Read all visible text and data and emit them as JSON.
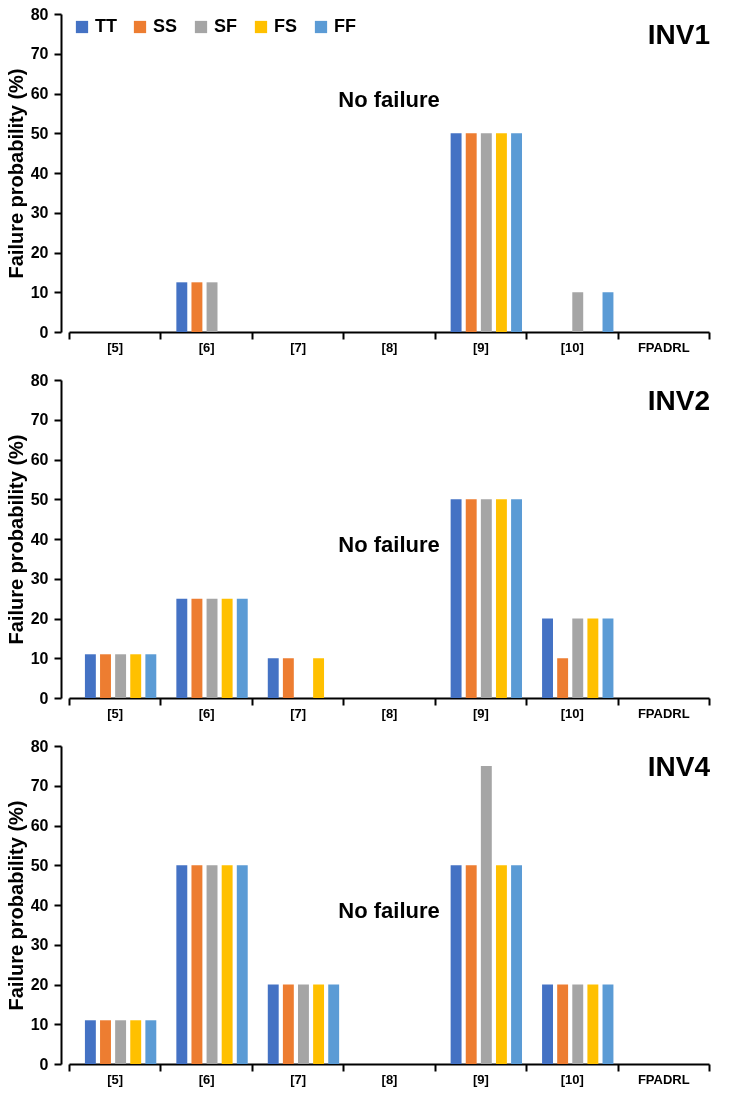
{
  "chart_data": [
    {
      "type": "bar",
      "title": "INV1",
      "ylabel": "Failure probability (%)",
      "categories": [
        "[5]",
        "[6]",
        "[7]",
        "[8]",
        "[9]",
        "[10]",
        "FPADRL"
      ],
      "series": [
        {
          "name": "TT",
          "color": "#4472c4",
          "values": [
            0,
            12.5,
            0,
            0,
            50,
            0,
            0
          ]
        },
        {
          "name": "SS",
          "color": "#ed7d31",
          "values": [
            0,
            12.5,
            0,
            0,
            50,
            0,
            0
          ]
        },
        {
          "name": "SF",
          "color": "#a5a5a5",
          "values": [
            0,
            12.5,
            0,
            0,
            50,
            10,
            0
          ]
        },
        {
          "name": "FS",
          "color": "#ffc000",
          "values": [
            0,
            0,
            0,
            0,
            50,
            0,
            0
          ]
        },
        {
          "name": "FF",
          "color": "#5b9bd5",
          "values": [
            0,
            0,
            0,
            0,
            50,
            10,
            0
          ]
        }
      ],
      "ylim": [
        0,
        80
      ],
      "yticks": [
        0,
        10,
        20,
        30,
        40,
        50,
        60,
        70,
        80
      ],
      "grid": false,
      "legend": "top left",
      "annotations": [
        "No failure"
      ]
    },
    {
      "type": "bar",
      "title": "INV2",
      "ylabel": "Failure probability (%)",
      "categories": [
        "[5]",
        "[6]",
        "[7]",
        "[8]",
        "[9]",
        "[10]",
        "FPADRL"
      ],
      "series": [
        {
          "name": "TT",
          "color": "#4472c4",
          "values": [
            11,
            25,
            10,
            0,
            50,
            20,
            0
          ]
        },
        {
          "name": "SS",
          "color": "#ed7d31",
          "values": [
            11,
            25,
            10,
            0,
            50,
            10,
            0
          ]
        },
        {
          "name": "SF",
          "color": "#a5a5a5",
          "values": [
            11,
            25,
            0,
            0,
            50,
            20,
            0
          ]
        },
        {
          "name": "FS",
          "color": "#ffc000",
          "values": [
            11,
            25,
            10,
            0,
            50,
            20,
            0
          ]
        },
        {
          "name": "FF",
          "color": "#5b9bd5",
          "values": [
            11,
            25,
            0,
            0,
            50,
            20,
            0
          ]
        }
      ],
      "ylim": [
        0,
        80
      ],
      "yticks": [
        0,
        10,
        20,
        30,
        40,
        50,
        60,
        70,
        80
      ],
      "grid": false,
      "legend": "top left",
      "annotations": [
        "No failure"
      ]
    },
    {
      "type": "bar",
      "title": "INV4",
      "ylabel": "Failure probability (%)",
      "categories": [
        "[5]",
        "[6]",
        "[7]",
        "[8]",
        "[9]",
        "[10]",
        "FPADRL"
      ],
      "series": [
        {
          "name": "TT",
          "color": "#4472c4",
          "values": [
            11,
            50,
            20,
            0,
            50,
            20,
            0
          ]
        },
        {
          "name": "SS",
          "color": "#ed7d31",
          "values": [
            11,
            50,
            20,
            0,
            50,
            20,
            0
          ]
        },
        {
          "name": "SF",
          "color": "#a5a5a5",
          "values": [
            11,
            50,
            20,
            0,
            75,
            20,
            0
          ]
        },
        {
          "name": "FS",
          "color": "#ffc000",
          "values": [
            11,
            50,
            20,
            0,
            50,
            20,
            0
          ]
        },
        {
          "name": "FF",
          "color": "#5b9bd5",
          "values": [
            11,
            50,
            20,
            0,
            50,
            20,
            0
          ]
        }
      ],
      "ylim": [
        0,
        80
      ],
      "yticks": [
        0,
        10,
        20,
        30,
        40,
        50,
        60,
        70,
        80
      ],
      "grid": false,
      "legend": "top left",
      "annotations": [
        "No failure"
      ]
    }
  ]
}
